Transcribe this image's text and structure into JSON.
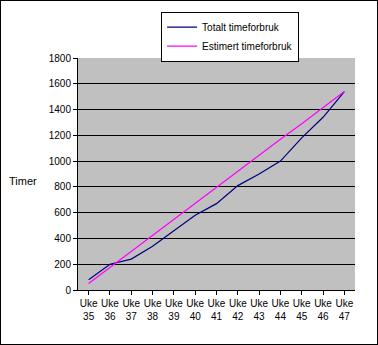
{
  "chart_data": {
    "type": "line",
    "y_label": "Timer",
    "categories": [
      "Uke 35",
      "Uke 36",
      "Uke 37",
      "Uke 38",
      "Uke 39",
      "Uke 40",
      "Uke 41",
      "Uke 42",
      "Uke 43",
      "Uke 44",
      "Uke 45",
      "Uke 46",
      "Uke 47"
    ],
    "series": [
      {
        "name": "Totalt timeforbruk",
        "color": "#000080",
        "values": [
          80,
          200,
          240,
          340,
          460,
          580,
          670,
          810,
          900,
          1000,
          1180,
          1340,
          1540
        ]
      },
      {
        "name": "Estimert timeforbruk",
        "color": "#ff00ff",
        "values": [
          50,
          175,
          300,
          425,
          550,
          670,
          795,
          920,
          1045,
          1170,
          1290,
          1415,
          1540
        ]
      }
    ],
    "ylim": [
      0,
      1800
    ],
    "yticks": [
      0,
      200,
      400,
      600,
      800,
      1000,
      1200,
      1400,
      1600,
      1800
    ],
    "grid": true,
    "legend": "top"
  }
}
